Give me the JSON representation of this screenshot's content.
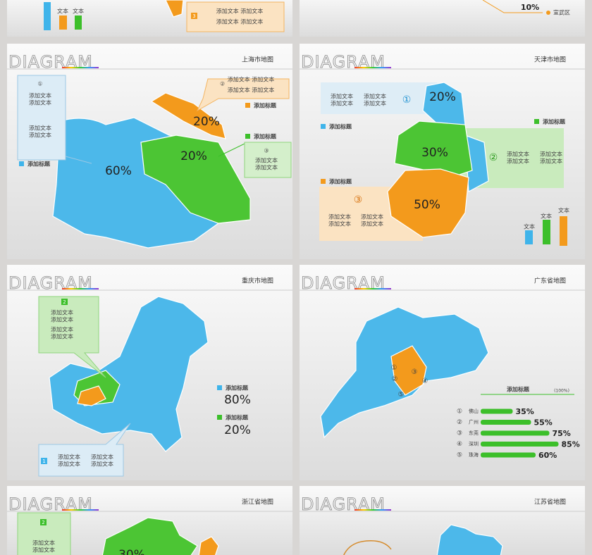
{
  "top_left": {
    "legend": [
      "文本",
      "文本"
    ],
    "badge": "3",
    "lines": [
      "添加文本 添加文本",
      "添加文本 添加文本"
    ]
  },
  "top_right": {
    "percent": "10%",
    "place": "宣武区"
  },
  "shanghai": {
    "header": "DIAGRAM",
    "title": "上海市地图",
    "percents": [
      "20%",
      "20%",
      "60%"
    ],
    "tags": [
      "添加标题",
      "添加标题",
      "添加标题"
    ],
    "callouts": [
      {
        "num": "①",
        "lines": [
          "添加文本",
          "添加文本",
          "添加文本",
          "添加文本"
        ]
      },
      {
        "num": "②",
        "lines": [
          "添加文本 添加文本",
          "添加文本 添加文本"
        ]
      },
      {
        "num": "③",
        "lines": [
          "添加文本",
          "添加文本"
        ]
      }
    ]
  },
  "tianjin": {
    "header": "DIAGRAM",
    "title": "天津市地图",
    "percents": [
      "20%",
      "30%",
      "50%"
    ],
    "tags": [
      "添加标题",
      "添加标题",
      "添加标题"
    ],
    "callouts": [
      {
        "num": "①",
        "lines": [
          "添加文本",
          "添加文本",
          "添加文本",
          "添加文本"
        ]
      },
      {
        "num": "②",
        "lines": [
          "添加文本",
          "添加文本",
          "添加文本",
          "添加文本"
        ]
      },
      {
        "num": "③",
        "lines": [
          "添加文本",
          "添加文本",
          "添加文本",
          "添加文本"
        ]
      }
    ],
    "legend": [
      "文本",
      "文本",
      "文本"
    ]
  },
  "chongqing": {
    "header": "DIAGRAM",
    "title": "重庆市地图",
    "percents": [
      "80%",
      "20%"
    ],
    "tags": [
      "添加标题",
      "添加标题"
    ],
    "callouts": [
      {
        "num": "2",
        "lines": [
          "添加文本",
          "添加文本",
          "添加文本",
          "添加文本"
        ]
      },
      {
        "num": "1",
        "lines": [
          "添加文本",
          "添加文本",
          "添加文本",
          "添加文本"
        ]
      }
    ]
  },
  "guangdong": {
    "header": "DIAGRAM",
    "title": "广东省地图",
    "map_numbers": [
      "①",
      "②",
      "③",
      "④",
      "⑤"
    ],
    "chart": {
      "title": "添加标题",
      "note": "(100%)",
      "numbers": [
        "①",
        "②",
        "③",
        "④",
        "⑤"
      ],
      "categories": [
        "佛山",
        "广州",
        "东莞",
        "深圳",
        "珠海"
      ],
      "values": [
        35,
        55,
        75,
        85,
        60
      ],
      "value_labels": [
        "35%",
        "55%",
        "75%",
        "85%",
        "60%"
      ],
      "xlim": [
        0,
        100
      ],
      "color": "#3cbf2a"
    }
  },
  "zhejiang": {
    "header": "DIAGRAM",
    "title": "浙江省地图",
    "percent": "30%",
    "callout": {
      "num": "2",
      "lines": [
        "添加文本",
        "添加文本"
      ]
    }
  },
  "jiangsu": {
    "header": "DIAGRAM",
    "title": "江苏省地图"
  }
}
